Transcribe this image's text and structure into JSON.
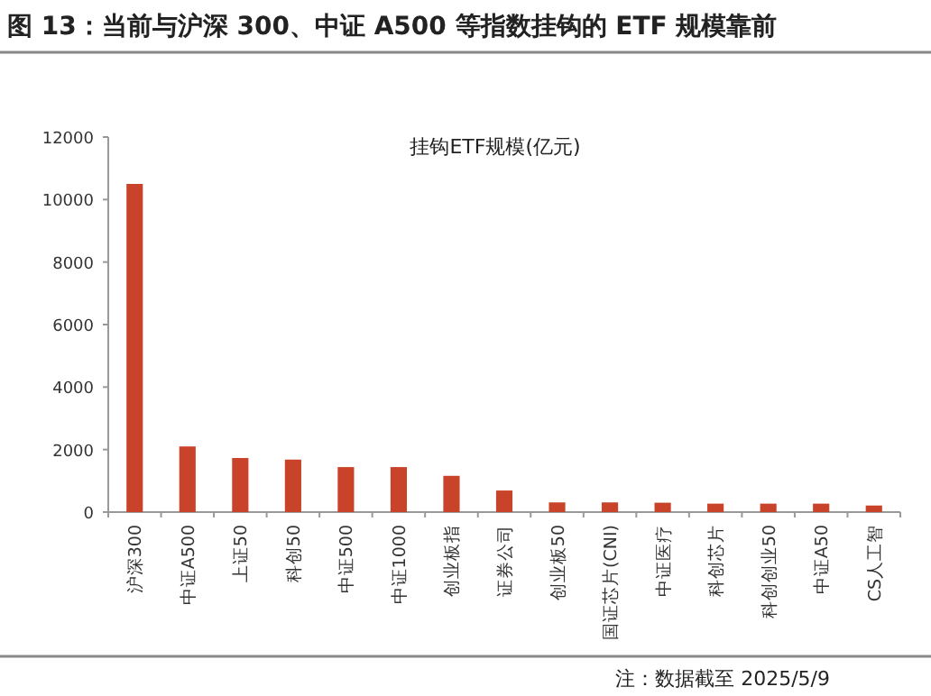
{
  "chart_data": {
    "type": "bar",
    "title": "图 13：当前与沪深 300、中证 A500 等指数挂钩的 ETF 规模靠前",
    "subtitle": "挂钩ETF规模(亿元)",
    "categories": [
      "沪深300",
      "中证A500",
      "上证50",
      "科创50",
      "中证500",
      "中证1000",
      "创业板指",
      "证券公司",
      "创业板50",
      "国证芯片(CNI)",
      "中证医疗",
      "科创芯片",
      "科创创业50",
      "中证A50",
      "CS人工智"
    ],
    "values": [
      10500,
      2100,
      1730,
      1680,
      1440,
      1440,
      1160,
      690,
      310,
      310,
      300,
      270,
      270,
      270,
      210
    ],
    "color": "#c9432a",
    "ylim": [
      0,
      12000
    ],
    "yticks": [
      0,
      2000,
      4000,
      6000,
      8000,
      10000,
      12000
    ],
    "annotations": [
      "注：数据截至 2025/5/9"
    ]
  }
}
